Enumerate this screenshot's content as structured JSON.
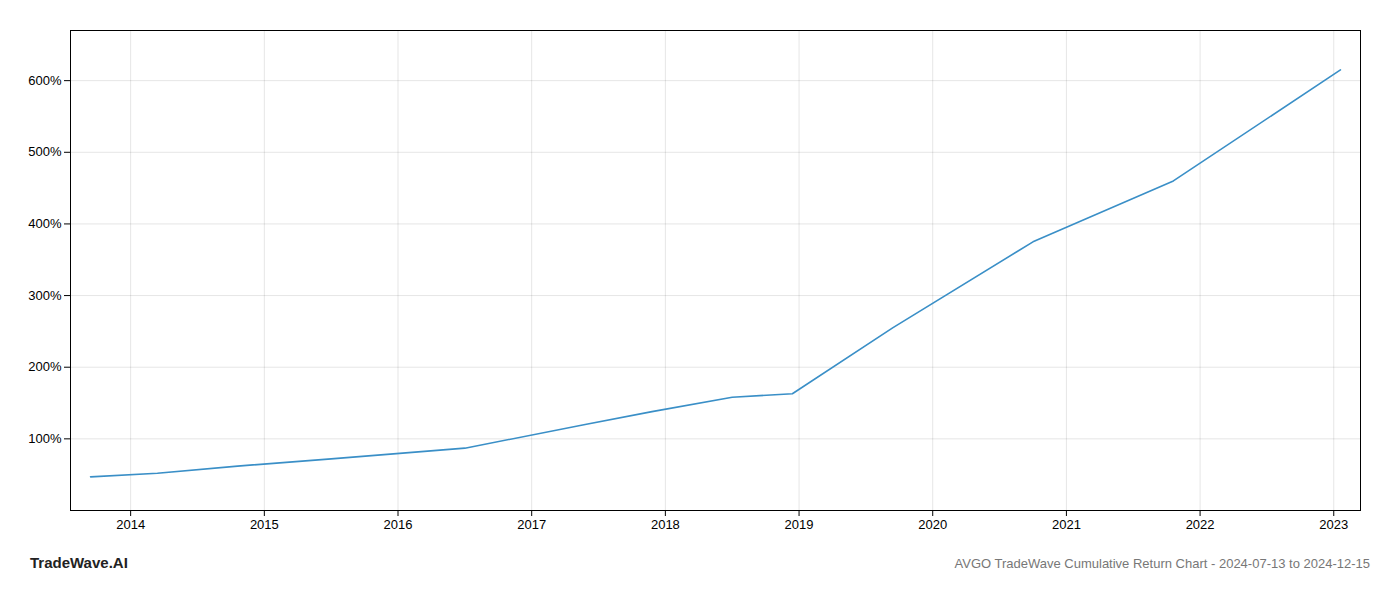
{
  "chart_data": {
    "type": "line",
    "title": "AVGO TradeWave Cumulative Return Chart - 2024-07-13 to 2024-12-15",
    "annotations": [
      "TradeWave.AI"
    ],
    "x": [
      2013.7,
      2014.2,
      2014.8,
      2015.5,
      2016.5,
      2017.4,
      2017.9,
      2018.5,
      2018.95,
      2019.7,
      2020.75,
      2021.8,
      2023.05
    ],
    "values": [
      47,
      52,
      62,
      72,
      87,
      120,
      138,
      158,
      163,
      255,
      375,
      460,
      615
    ],
    "color": "#3a8fc7",
    "xlim": [
      2013.55,
      2023.2
    ],
    "ylim": [
      0,
      670
    ],
    "xticks": [
      2014,
      2015,
      2016,
      2017,
      2018,
      2019,
      2020,
      2021,
      2022,
      2023
    ],
    "yticks": [
      {
        "value": 100,
        "label": "100%"
      },
      {
        "value": 200,
        "label": "200%"
      },
      {
        "value": 300,
        "label": "300%"
      },
      {
        "value": 400,
        "label": "400%"
      },
      {
        "value": 500,
        "label": "500%"
      },
      {
        "value": 600,
        "label": "600%"
      }
    ],
    "grid": true
  }
}
